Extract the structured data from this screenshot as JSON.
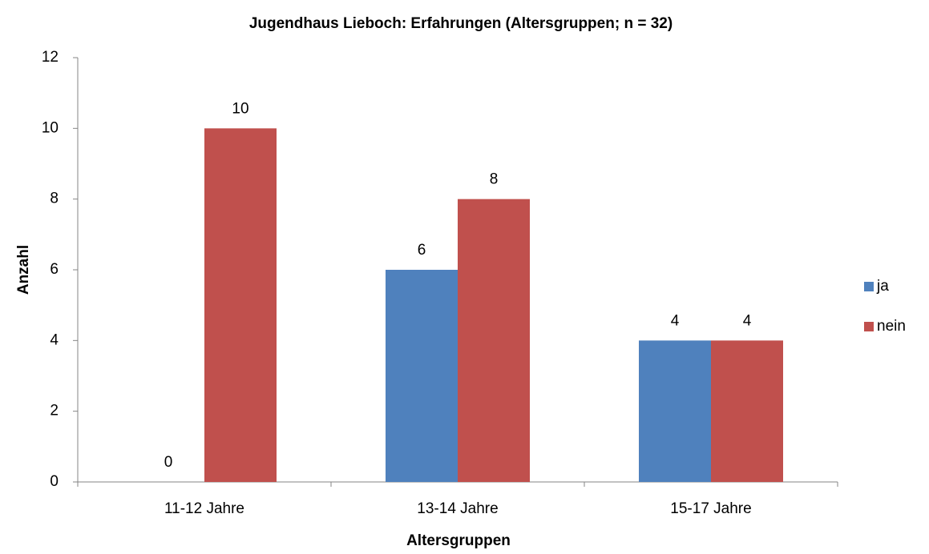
{
  "chart_data": {
    "type": "bar",
    "title": "Jugendhaus Lieboch: Erfahrungen (Altersgruppen; n = 32)",
    "x_label": "Altersgruppen",
    "y_label": "Anzahl",
    "categories": [
      "11-12 Jahre",
      "13-14 Jahre",
      "15-17 Jahre"
    ],
    "series": [
      {
        "name": "ja",
        "color": "#4f81bd",
        "values": [
          0,
          6,
          4
        ]
      },
      {
        "name": "nein",
        "color": "#c0504d",
        "values": [
          10,
          8,
          4
        ]
      }
    ],
    "ylim": [
      0,
      12
    ],
    "yticks": [
      0,
      2,
      4,
      6,
      8,
      10,
      12
    ],
    "grid": false,
    "legend": "right"
  }
}
